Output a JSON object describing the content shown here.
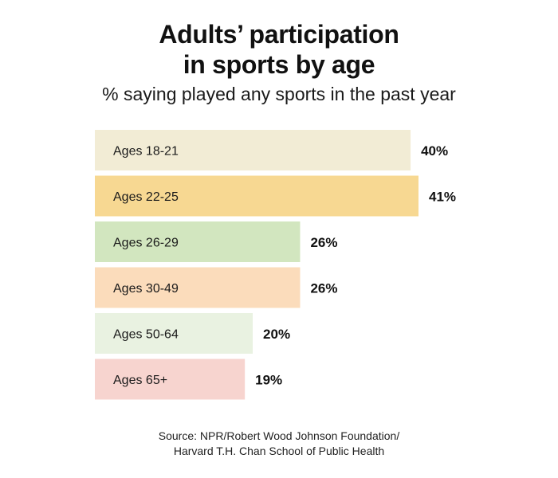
{
  "title_line1": "Adults’ participation",
  "title_line2": "in sports by age",
  "subtitle": "% saying played any sports in the past year",
  "source_line1": "Source: NPR/Robert Wood Johnson Foundation/",
  "source_line2": "Harvard T.H. Chan School of Public Health",
  "chart_data": {
    "type": "bar",
    "orientation": "horizontal",
    "title": "Adults’ participation in sports by age",
    "subtitle": "% saying played any sports in the past year",
    "categories": [
      "Ages 18-21",
      "Ages 22-25",
      "Ages 26-29",
      "Ages 30-49",
      "Ages 50-64",
      "Ages 65+"
    ],
    "values": [
      40,
      41,
      26,
      26,
      20,
      19
    ],
    "value_labels": [
      "40%",
      "41%",
      "26%",
      "26%",
      "20%",
      "19%"
    ],
    "colors": [
      "#f2ecd5",
      "#f7d892",
      "#d2e6bf",
      "#fbdcbb",
      "#e9f2e1",
      "#f7d4cf"
    ],
    "unit": "%",
    "xlim": [
      0,
      41
    ],
    "grid": false,
    "legend": "none"
  }
}
